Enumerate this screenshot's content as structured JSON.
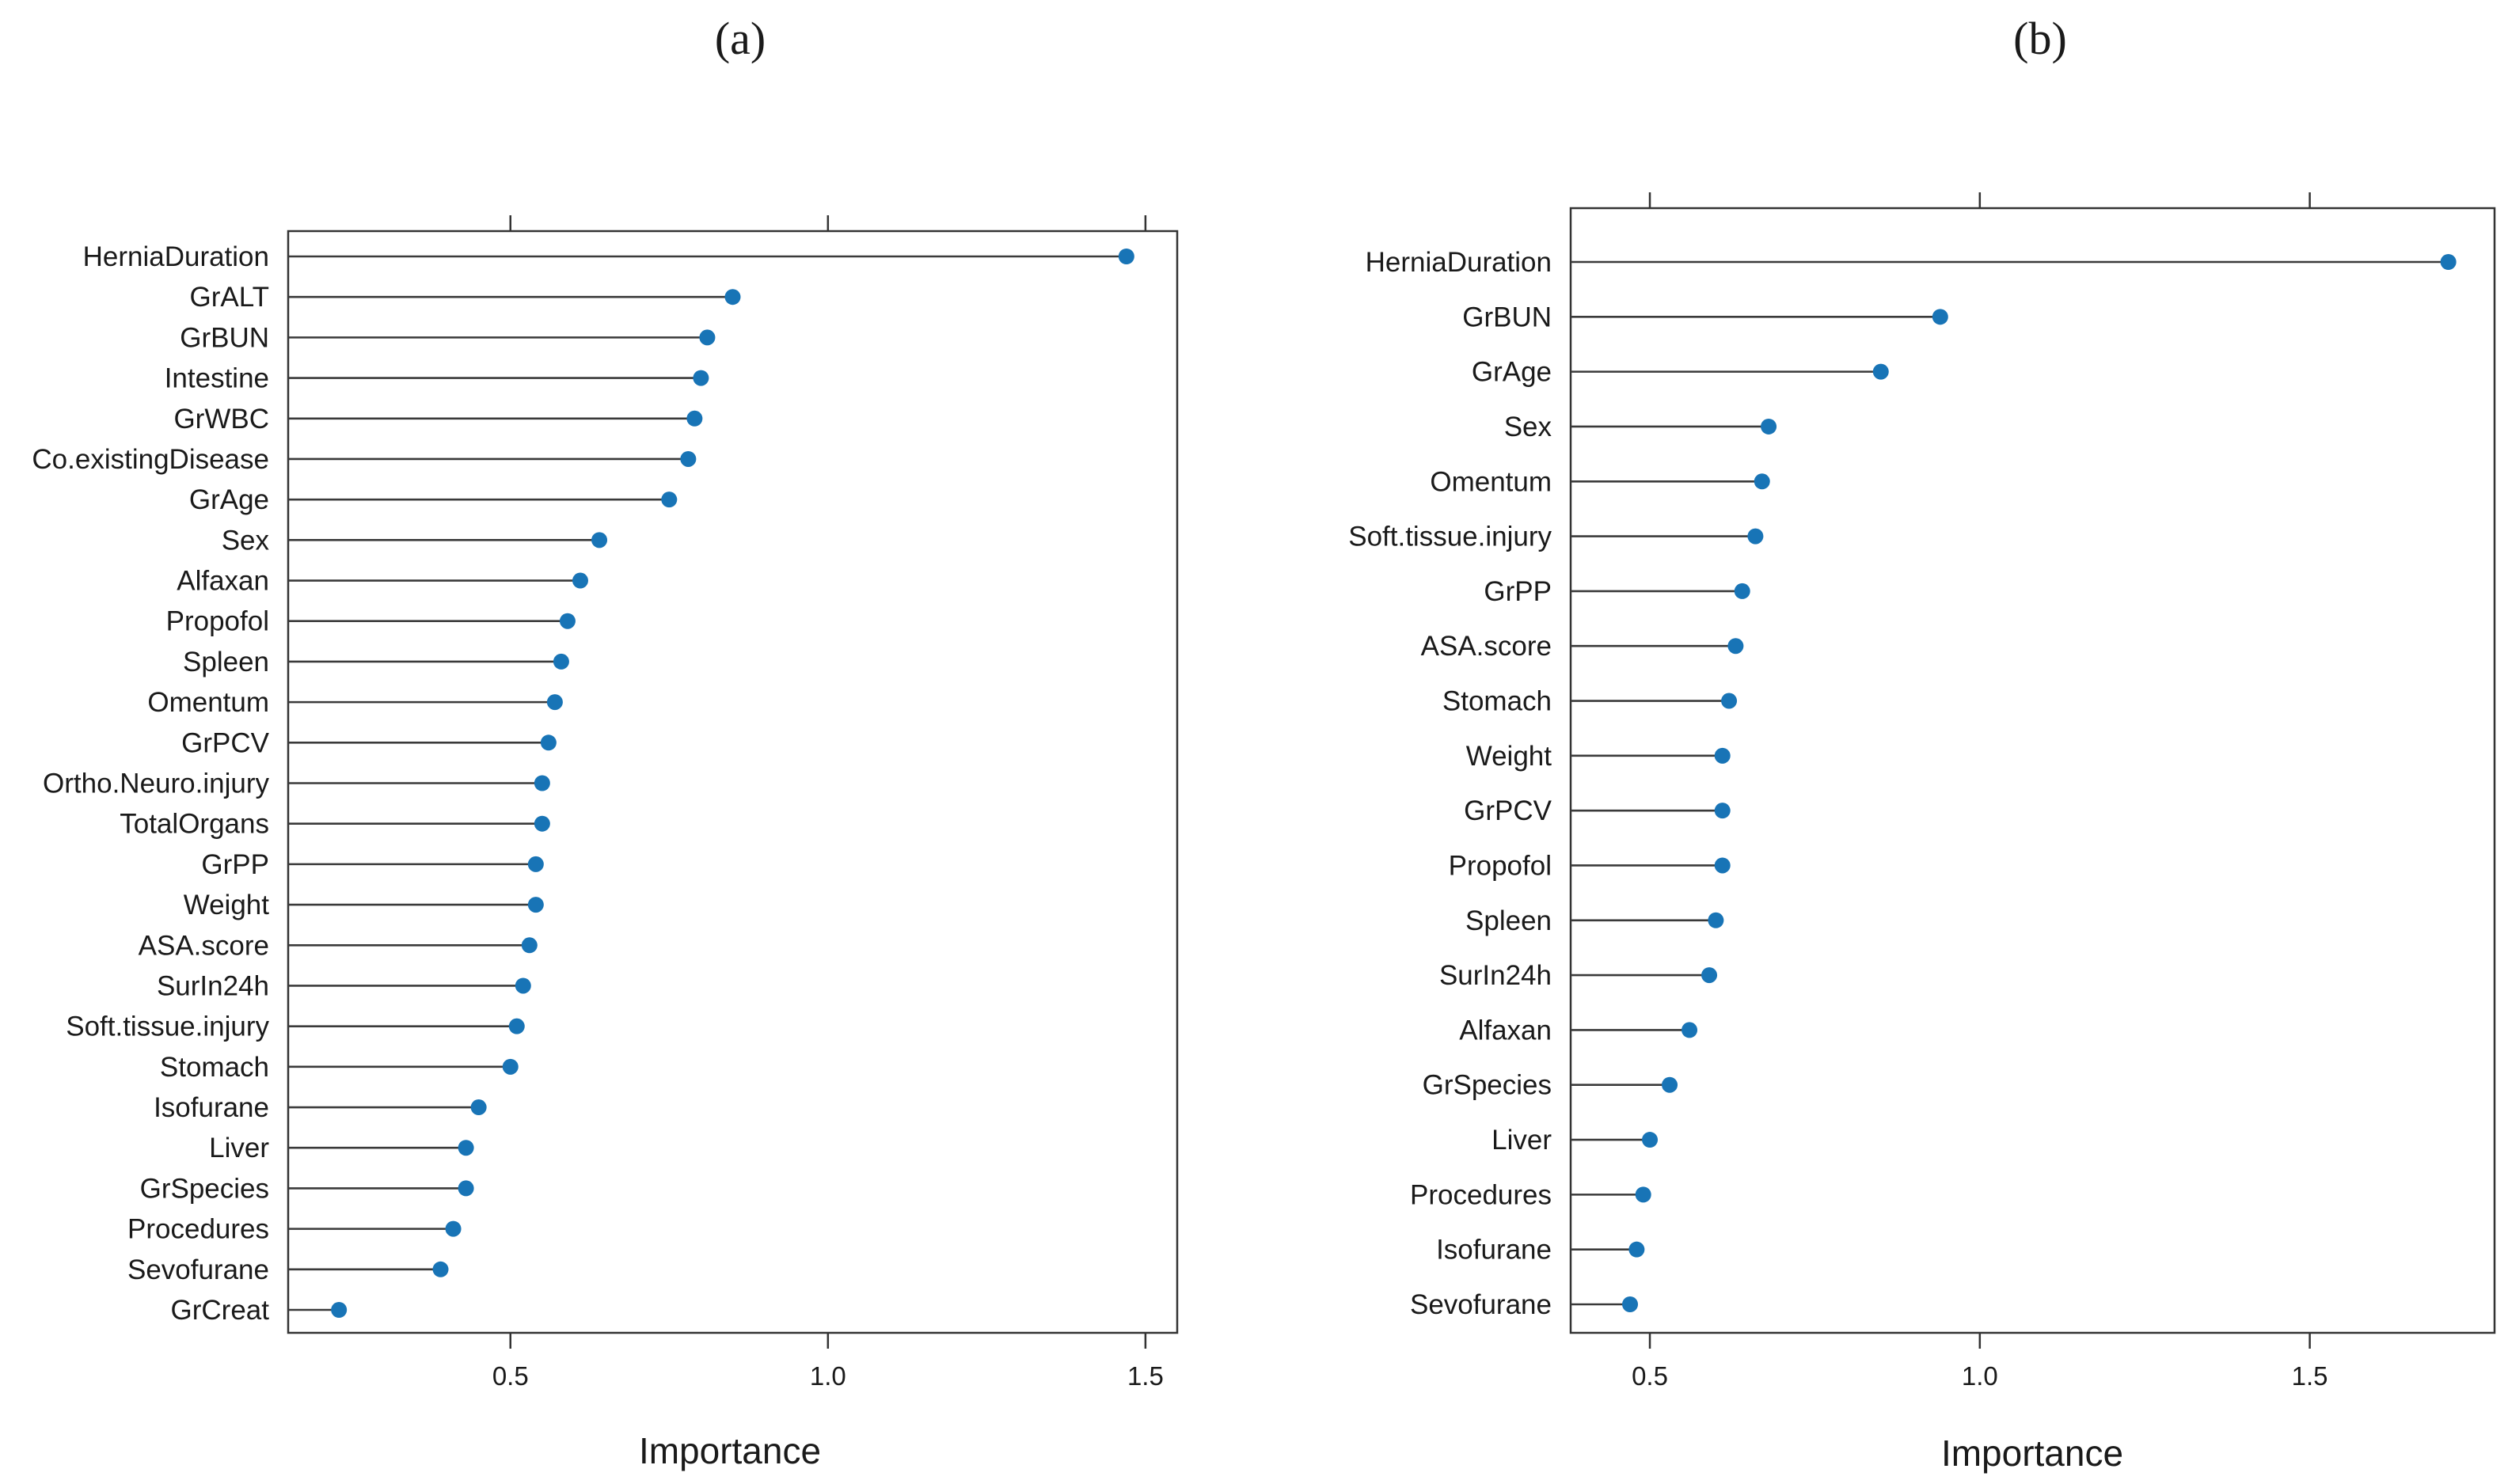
{
  "chart_data": [
    {
      "type": "lollipop",
      "panel_label": "(a)",
      "xlabel": "Importance",
      "ylabel": "",
      "xlim": [
        0.15,
        1.55
      ],
      "xticks": [
        0.5,
        1.0,
        1.5
      ],
      "xtick_labels": [
        "0.5",
        "1.0",
        "1.5"
      ],
      "grid": false,
      "marker_color": "#1874b6",
      "categories": [
        "HerniaDuration",
        "GrALT",
        "GrBUN",
        "Intestine",
        "GrWBC",
        "Co.existingDisease",
        "GrAge",
        "Sex",
        "Alfaxan",
        "Propofol",
        "Spleen",
        "Omentum",
        "GrPCV",
        "Ortho.Neuro.injury",
        "TotalOrgans",
        "GrPP",
        "Weight",
        "ASA.score",
        "SurIn24h",
        "Soft.tissue.injury",
        "Stomach",
        "Isofurane",
        "Liver",
        "GrSpecies",
        "Procedures",
        "Sevofurane",
        "GrCreat"
      ],
      "values": [
        1.47,
        0.85,
        0.81,
        0.8,
        0.79,
        0.78,
        0.75,
        0.64,
        0.61,
        0.59,
        0.58,
        0.57,
        0.56,
        0.55,
        0.55,
        0.54,
        0.54,
        0.53,
        0.52,
        0.51,
        0.5,
        0.45,
        0.43,
        0.43,
        0.41,
        0.39,
        0.23
      ]
    },
    {
      "type": "lollipop",
      "panel_label": "(b)",
      "xlabel": "Importance",
      "ylabel": "",
      "xlim": [
        0.38,
        1.78
      ],
      "xticks": [
        0.5,
        1.0,
        1.5
      ],
      "xtick_labels": [
        "0.5",
        "1.0",
        "1.5"
      ],
      "grid": false,
      "marker_color": "#1874b6",
      "categories": [
        "HerniaDuration",
        "GrBUN",
        "GrAge",
        "Sex",
        "Omentum",
        "Soft.tissue.injury",
        "GrPP",
        "ASA.score",
        "Stomach",
        "Weight",
        "GrPCV",
        "Propofol",
        "Spleen",
        "SurIn24h",
        "Alfaxan",
        "GrSpecies",
        "Liver",
        "Procedures",
        "Isofurane",
        "Sevofurane"
      ],
      "values": [
        1.71,
        0.94,
        0.85,
        0.68,
        0.67,
        0.66,
        0.64,
        0.63,
        0.62,
        0.61,
        0.61,
        0.61,
        0.6,
        0.59,
        0.56,
        0.53,
        0.5,
        0.49,
        0.48,
        0.47
      ]
    }
  ]
}
